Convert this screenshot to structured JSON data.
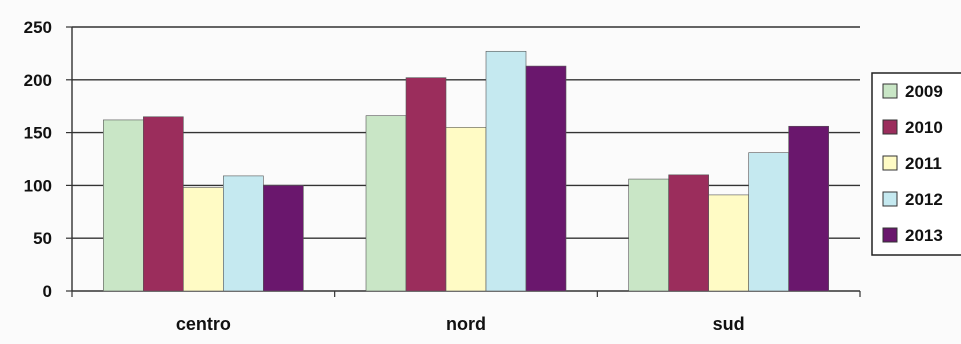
{
  "chart_data": {
    "type": "bar",
    "title": "",
    "xlabel": "",
    "ylabel": "",
    "categories": [
      "centro",
      "nord",
      "sud"
    ],
    "ylim": [
      0,
      250
    ],
    "yticks": [
      0,
      50,
      100,
      150,
      200,
      250
    ],
    "grid": true,
    "legend_position": "right",
    "series": [
      {
        "name": "2009",
        "values": [
          162,
          166,
          106
        ],
        "color": "#c9e6c6"
      },
      {
        "name": "2010",
        "values": [
          165,
          202,
          110
        ],
        "color": "#9b2d5c"
      },
      {
        "name": "2011",
        "values": [
          98,
          155,
          91
        ],
        "color": "#fffbc5"
      },
      {
        "name": "2012",
        "values": [
          109,
          227,
          131
        ],
        "color": "#c5e9f0"
      },
      {
        "name": "2013",
        "values": [
          100,
          213,
          156
        ],
        "color": "#6a176d"
      }
    ]
  }
}
